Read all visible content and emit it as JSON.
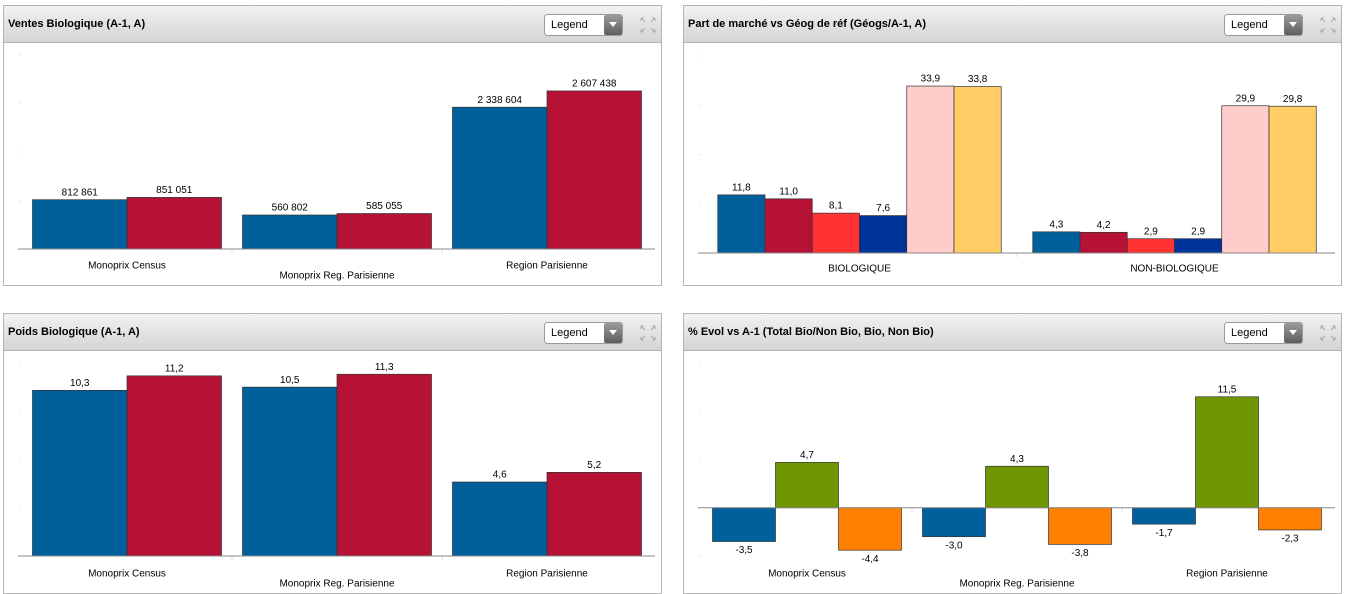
{
  "chart_data": [
    {
      "type": "bar",
      "title": "Ventes Biologique (A-1, A)",
      "dropdown": "Legend",
      "categories": [
        "Monoprix Census",
        "Monoprix Reg. Parisienne",
        "Region Parisienne"
      ],
      "series": [
        {
          "color": "#00609c",
          "values": [
            812861,
            560802,
            2338604
          ],
          "value_labels": [
            "812 861",
            "560 802",
            "2 338 604"
          ]
        },
        {
          "color": "#b51235",
          "values": [
            851051,
            585055,
            2607438
          ],
          "value_labels": [
            "851 051",
            "585 055",
            "2 607 438"
          ]
        }
      ],
      "ylim": [
        0,
        3200000
      ]
    },
    {
      "type": "bar",
      "title": "Part de marché vs Géog de réf (Géogs/A-1, A)",
      "dropdown": "Legend",
      "categories": [
        "BIOLOGIQUE",
        "NON-BIOLOGIQUE"
      ],
      "series": [
        {
          "color": "#00609c",
          "values": [
            11.8,
            4.3
          ],
          "value_labels": [
            "11,8",
            "4,3"
          ]
        },
        {
          "color": "#b51235",
          "values": [
            11.0,
            4.2
          ],
          "value_labels": [
            "11,0",
            "4,2"
          ]
        },
        {
          "color": "#ff3333",
          "values": [
            8.1,
            2.9
          ],
          "value_labels": [
            "8,1",
            "2,9"
          ]
        },
        {
          "color": "#003399",
          "values": [
            7.6,
            2.9
          ],
          "value_labels": [
            "7,6",
            "2,9"
          ]
        },
        {
          "color": "#ffcccc",
          "values": [
            33.9,
            29.9
          ],
          "value_labels": [
            "33,9",
            "29,9"
          ]
        },
        {
          "color": "#ffcc66",
          "values": [
            33.8,
            29.8
          ],
          "value_labels": [
            "33,8",
            "29,8"
          ]
        }
      ],
      "ylim": [
        0,
        40
      ]
    },
    {
      "type": "bar",
      "title": "Poids Biologique (A-1, A)",
      "dropdown": "Legend",
      "categories": [
        "Monoprix Census",
        "Monoprix Reg. Parisienne",
        "Region Parisienne"
      ],
      "series": [
        {
          "color": "#00609c",
          "values": [
            10.3,
            10.5,
            4.6
          ],
          "value_labels": [
            "10,3",
            "10,5",
            "4,6"
          ]
        },
        {
          "color": "#b51235",
          "values": [
            11.2,
            11.3,
            5.2
          ],
          "value_labels": [
            "11,2",
            "11,3",
            "5,2"
          ]
        }
      ],
      "ylim": [
        0,
        12
      ]
    },
    {
      "type": "bar",
      "title": "% Evol vs A-1 (Total Bio/Non Bio, Bio, Non Bio)",
      "dropdown": "Legend",
      "categories": [
        "Monoprix Census",
        "Monoprix Reg. Parisienne",
        "Region Parisienne"
      ],
      "series": [
        {
          "color": "#00609c",
          "values": [
            -3.5,
            -3.0,
            -1.7
          ],
          "value_labels": [
            "-3,5",
            "-3,0",
            "-1,7"
          ]
        },
        {
          "color": "#6e9600",
          "values": [
            4.7,
            4.3,
            11.5
          ],
          "value_labels": [
            "4,7",
            "4,3",
            "11,5"
          ]
        },
        {
          "color": "#ff7f00",
          "values": [
            -4.4,
            -3.8,
            -2.3
          ],
          "value_labels": [
            "-4,4",
            "-3,8",
            "-2,3"
          ]
        }
      ],
      "ylim": [
        -5,
        15
      ]
    }
  ]
}
